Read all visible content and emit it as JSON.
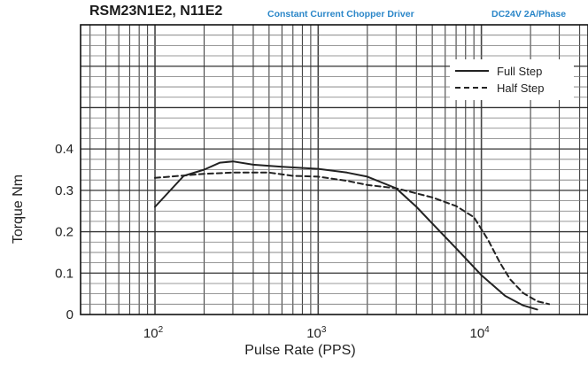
{
  "header": {
    "title": "RSM23N1E2, N11E2",
    "subtitle": "Constant Current Chopper Driver",
    "note": "DC24V 2A/Phase"
  },
  "chart_data": {
    "type": "line",
    "xlabel": "Pulse Rate (PPS)",
    "ylabel": "Torque Nm",
    "xscale": "log",
    "xlim": [
      35,
      45000
    ],
    "ylim": [
      0,
      0.7
    ],
    "grid": true,
    "legend_position": "top-right",
    "x_ticks": [
      {
        "value": 100,
        "base": "10",
        "exp": "2"
      },
      {
        "value": 1000,
        "base": "10",
        "exp": "3"
      },
      {
        "value": 10000,
        "base": "10",
        "exp": "4"
      }
    ],
    "y_ticks": [
      {
        "value": 0,
        "label": "0"
      },
      {
        "value": 0.1,
        "label": "0.1"
      },
      {
        "value": 0.2,
        "label": "0.2"
      },
      {
        "value": 0.3,
        "label": "0.3"
      },
      {
        "value": 0.4,
        "label": "0.4"
      }
    ],
    "series": [
      {
        "name": "Full Step",
        "style": "solid",
        "color": "#222222",
        "points": [
          [
            100,
            0.26
          ],
          [
            150,
            0.335
          ],
          [
            200,
            0.35
          ],
          [
            250,
            0.367
          ],
          [
            300,
            0.37
          ],
          [
            400,
            0.362
          ],
          [
            600,
            0.357
          ],
          [
            1000,
            0.352
          ],
          [
            1500,
            0.343
          ],
          [
            2000,
            0.333
          ],
          [
            3000,
            0.305
          ],
          [
            4000,
            0.26
          ],
          [
            5000,
            0.22
          ],
          [
            7000,
            0.16
          ],
          [
            10000,
            0.095
          ],
          [
            14000,
            0.045
          ],
          [
            18000,
            0.022
          ],
          [
            22000,
            0.012
          ]
        ]
      },
      {
        "name": "Half Step",
        "style": "dashed",
        "color": "#222222",
        "points": [
          [
            100,
            0.33
          ],
          [
            200,
            0.34
          ],
          [
            300,
            0.343
          ],
          [
            500,
            0.343
          ],
          [
            700,
            0.335
          ],
          [
            1000,
            0.333
          ],
          [
            1500,
            0.323
          ],
          [
            2000,
            0.313
          ],
          [
            3000,
            0.305
          ],
          [
            5000,
            0.283
          ],
          [
            7000,
            0.262
          ],
          [
            9000,
            0.235
          ],
          [
            11000,
            0.18
          ],
          [
            13000,
            0.125
          ],
          [
            15000,
            0.085
          ],
          [
            18000,
            0.052
          ],
          [
            22000,
            0.032
          ],
          [
            26000,
            0.025
          ]
        ]
      }
    ]
  }
}
